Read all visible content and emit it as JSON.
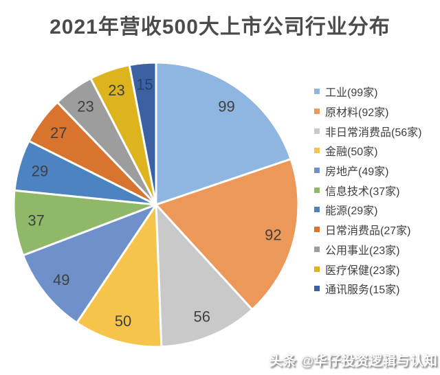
{
  "title": "2021年营收500大上市公司行业分布",
  "watermark": "头条 @华仔投资逻辑与认知",
  "colors": {
    "background": "#FFFFFF",
    "title_text": "#4B4B4B",
    "legend_text": "#3F3F3F",
    "slice_border": "#FFFFFF"
  },
  "chart_data": {
    "type": "pie",
    "title": "2021年营收500大上市公司行业分布",
    "total": 500,
    "unit": "家",
    "start_angle_deg": 0,
    "direction": "clockwise",
    "legend_position": "right",
    "value_labels": "inside",
    "slices": [
      {
        "name": "工业",
        "value": 99,
        "color": "#8FB5E1",
        "legend_label": "工业(99家)",
        "label_color": "#3F3F3F"
      },
      {
        "name": "原材料",
        "value": 92,
        "color": "#EC9858",
        "legend_label": "原材料(92家)",
        "label_color": "#3F3F3F"
      },
      {
        "name": "非日常消费品",
        "value": 56,
        "color": "#C9C9C9",
        "legend_label": "非日常消费品(56家)",
        "label_color": "#3F3F3F"
      },
      {
        "name": "金融",
        "value": 50,
        "color": "#F6C44A",
        "legend_label": "金融(50家)",
        "label_color": "#3F3F3F"
      },
      {
        "name": "房地产",
        "value": 49,
        "color": "#7090CB",
        "legend_label": "房地产(49家)",
        "label_color": "#3F3F3F"
      },
      {
        "name": "信息技术",
        "value": 37,
        "color": "#8FB969",
        "legend_label": "信息技术(37家)",
        "label_color": "#3F3F3F"
      },
      {
        "name": "能源",
        "value": 29,
        "color": "#4E83C1",
        "legend_label": "能源(29家)",
        "label_color": "#3F3F3F"
      },
      {
        "name": "日常消费品",
        "value": 27,
        "color": "#D8742E",
        "legend_label": "日常消费品(27家)",
        "label_color": "#3F3F3F"
      },
      {
        "name": "公用事业",
        "value": 23,
        "color": "#9D9D9D",
        "legend_label": "公用事业(23家)",
        "label_color": "#3F3F3F"
      },
      {
        "name": "医疗保健",
        "value": 23,
        "color": "#DDB31E",
        "legend_label": "医疗保健(23家)",
        "label_color": "#3F3F3F"
      },
      {
        "name": "通讯服务",
        "value": 15,
        "color": "#3C61A2",
        "legend_label": "通讯服务(15家)",
        "label_color": "#27406E"
      }
    ]
  }
}
